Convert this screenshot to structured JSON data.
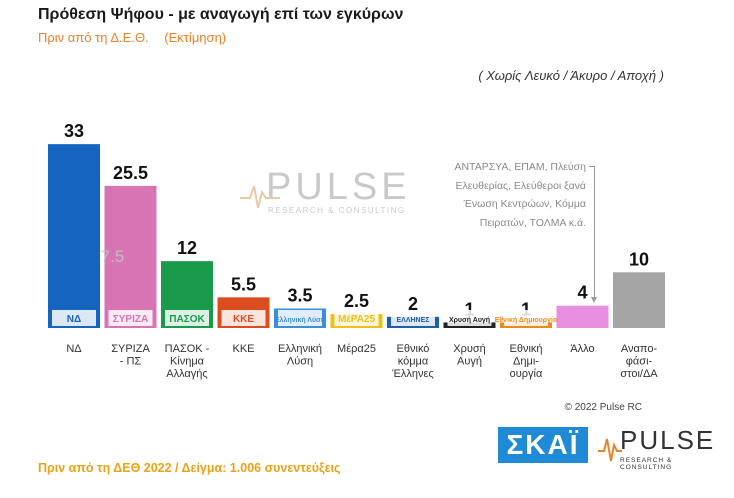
{
  "header": {
    "title": "Πρόθεση Ψήφου - με αναγωγή επί των εγκύρων",
    "subtitle": "Πριν από τη Δ.Ε.Θ.",
    "estimate": "(Εκτίμηση)",
    "note": "( Χωρίς Λευκό / Άκυρο / Αποχή )"
  },
  "watermark": {
    "word": "PULSE",
    "sub": "RESEARCH & CONSULTING"
  },
  "other_note": {
    "lines": [
      "ΑΝΤΑΡΣΥΑ, ΕΠΑΜ, Πλεύση",
      "Ελευθερίας, Ελεύθεροι ξανά",
      "Ένωση Κεντρώων, Κόμμα",
      "Πειρατών, ΤΟΛΜΑ  κ.ά."
    ]
  },
  "chart_data": {
    "type": "bar",
    "title": "Πρόθεση Ψήφου - με αναγωγή επί των εγκύρων",
    "xlabel": "",
    "ylabel": "",
    "ylim": [
      0,
      35
    ],
    "grid": false,
    "categories": [
      "ΝΔ",
      "ΣΥΡΙΖΑ - ΠΣ",
      "ΠΑΣΟΚ - Κίνημα Αλλαγής",
      "ΚΚΕ",
      "Ελληνική Λύση",
      "Μέρα25",
      "Εθνικό κόμμα Έλληνες",
      "Χρυσή Αυγή",
      "Εθνική Δημιουργία",
      "Άλλο",
      "Αναποφάσιστοι/ΔΑ"
    ],
    "tick_labels": [
      [
        "ΝΔ"
      ],
      [
        "ΣΥΡΙΖΑ",
        "- ΠΣ"
      ],
      [
        "ΠΑΣΟΚ -",
        "Κίνημα",
        "Αλλαγής"
      ],
      [
        "ΚΚΕ"
      ],
      [
        "Ελληνική",
        "Λύση"
      ],
      [
        "Μέρα25"
      ],
      [
        "Εθνικό",
        "κόμμα",
        "Έλληνες"
      ],
      [
        "Χρυσή",
        "Αυγή"
      ],
      [
        "Εθνική",
        "Δημι-",
        "ουργία"
      ],
      [
        "Άλλο"
      ],
      [
        "Αναπο-",
        "φάσι-",
        "στοι/ΔΑ"
      ]
    ],
    "values": [
      33,
      25.5,
      12,
      5.5,
      3.5,
      2.5,
      2,
      1,
      1,
      4,
      10
    ],
    "value_labels": [
      "33",
      "25.5",
      "12",
      "5.5",
      "3.5",
      "2.5",
      "2",
      "1",
      "1",
      "4",
      "10"
    ],
    "colors": [
      "#1565c0",
      "#d873b4",
      "#1a9a4b",
      "#d94d1e",
      "#3a8fd8",
      "#e9c21a",
      "#1f5fa8",
      "#222222",
      "#e98a1a",
      "#e88fe2",
      "#a5a5a5"
    ],
    "annotations": [
      {
        "category": "ΣΥΡΙΖΑ - ΠΣ",
        "text": "7.5"
      }
    ],
    "logos": [
      "ΝΔ",
      "ΣΥΡΙΖΑ",
      "ΠΑΣΟΚ",
      "ΚΚΕ",
      "Ελληνική Λύση",
      "ΜέΡΑ25",
      "ΕΛΛΗΝΕΣ",
      "Χρυσή Αυγή",
      "Εθνική Δημιουργία",
      "",
      ""
    ]
  },
  "footer": {
    "copyright": "© 2022 Pulse RC",
    "sample_text": "Πριν από τη ΔΕΘ  2022  /  Δείγμα:  1.006 συνεντεύξεις",
    "skai_logo": "ΣΚΑΪ",
    "pulse_logo": "PULSE",
    "pulse_logo_sub": "RESEARCH & CONSULTING"
  }
}
